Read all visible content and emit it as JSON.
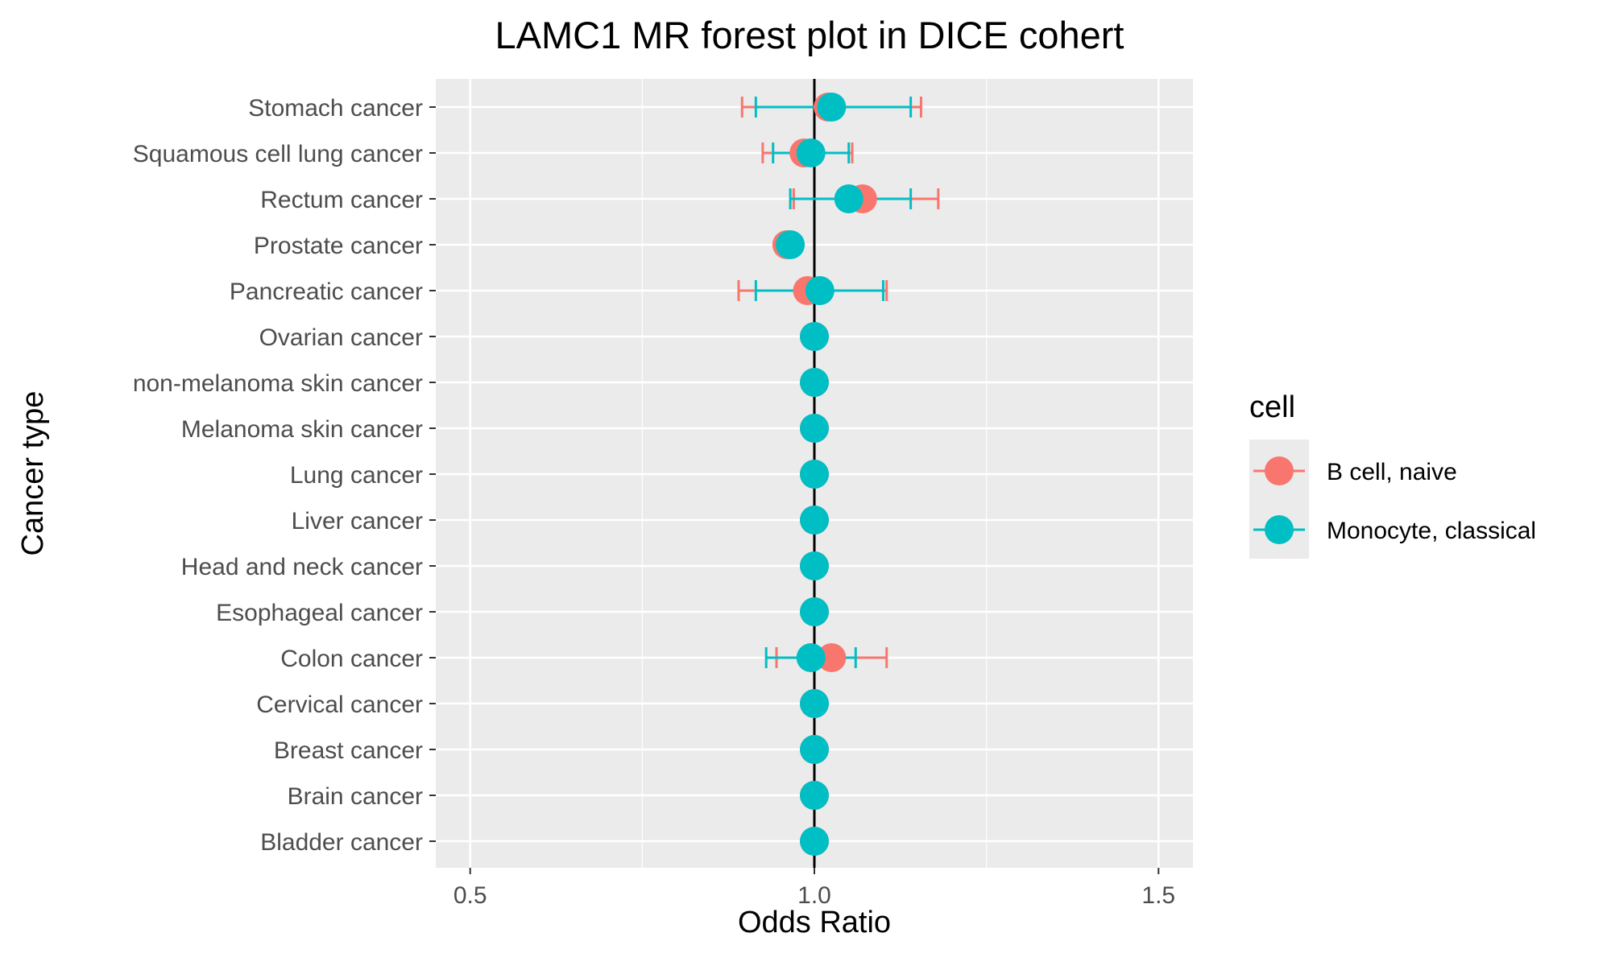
{
  "chart_data": {
    "type": "scatter",
    "subtype": "forest",
    "title": "LAMC1 MR forest plot in DICE cohert",
    "xlabel": "Odds Ratio",
    "ylabel": "Cancer type",
    "xlim": [
      0.45,
      1.55
    ],
    "x_ticks": [
      0.5,
      1.0,
      1.5
    ],
    "x_tick_labels": [
      "0.5",
      "1.0",
      "1.5"
    ],
    "reference_line": 1.0,
    "grid": true,
    "legend": {
      "title": "cell",
      "position": "right"
    },
    "categories": [
      "Stomach cancer",
      "Squamous cell lung cancer",
      "Rectum cancer",
      "Prostate cancer",
      "Pancreatic cancer",
      "Ovarian cancer",
      "non-melanoma skin cancer",
      "Melanoma skin cancer",
      "Lung cancer",
      "Liver cancer",
      "Head and neck cancer",
      "Esophageal cancer",
      "Colon cancer",
      "Cervical cancer",
      "Breast cancer",
      "Brain cancer",
      "Bladder cancer"
    ],
    "series": [
      {
        "name": "B cell, naive",
        "color": "#F8766D",
        "or": [
          1.02,
          0.985,
          1.07,
          0.96,
          0.99,
          1.0,
          1.0,
          1.0,
          1.0,
          1.0,
          1.0,
          1.0,
          1.025,
          1.0,
          1.0,
          1.0,
          1.0
        ],
        "lower": [
          0.895,
          0.925,
          0.97,
          null,
          0.89,
          null,
          null,
          null,
          null,
          null,
          null,
          null,
          0.945,
          null,
          null,
          null,
          null
        ],
        "upper": [
          1.155,
          1.055,
          1.18,
          null,
          1.105,
          null,
          null,
          null,
          null,
          null,
          null,
          null,
          1.105,
          null,
          null,
          null,
          null
        ]
      },
      {
        "name": "Monocyte, classical",
        "color": "#00BFC4",
        "or": [
          1.025,
          0.995,
          1.05,
          0.965,
          1.008,
          1.0,
          1.0,
          1.0,
          1.0,
          1.0,
          1.0,
          1.0,
          0.995,
          1.0,
          1.0,
          1.0,
          1.0
        ],
        "lower": [
          0.915,
          0.94,
          0.965,
          null,
          0.915,
          null,
          null,
          null,
          null,
          null,
          null,
          null,
          0.93,
          null,
          null,
          null,
          null
        ],
        "upper": [
          1.14,
          1.05,
          1.14,
          null,
          1.1,
          null,
          null,
          null,
          null,
          null,
          null,
          null,
          1.06,
          null,
          null,
          null,
          null
        ]
      }
    ]
  }
}
